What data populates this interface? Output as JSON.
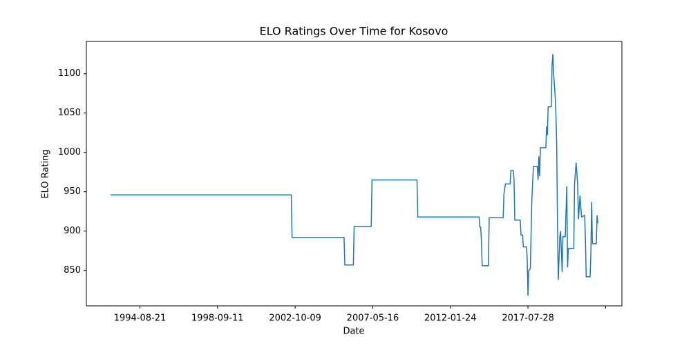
{
  "chart_data": {
    "type": "line",
    "title": "ELO Ratings Over Time for Kosovo",
    "x_label": "Date",
    "y_label": "ELO Rating",
    "x": [
      0,
      233,
      234,
      301,
      302,
      313,
      314,
      336,
      337,
      395,
      396,
      475,
      476,
      477,
      478,
      479,
      487,
      488,
      506,
      507,
      509,
      515,
      516,
      519,
      520,
      521,
      528,
      529,
      531,
      532,
      536,
      537,
      538,
      539,
      541,
      543,
      545,
      550,
      551,
      552,
      553,
      554,
      561,
      562,
      563,
      564,
      568,
      569,
      570,
      571,
      573,
      574,
      575,
      576,
      577,
      579,
      580,
      582,
      583,
      586,
      588,
      589,
      590,
      597,
      598,
      600,
      602,
      603,
      605,
      607,
      611,
      612,
      613,
      618,
      619,
      620,
      621,
      626,
      627,
      628
    ],
    "series": [
      {
        "name": "Kosovo",
        "color": "#1f77b4",
        "values": [
          946,
          946,
          892,
          892,
          857,
          857,
          906,
          906,
          965,
          965,
          918,
          918,
          905,
          905,
          888,
          856,
          856,
          917,
          917,
          947,
          960,
          960,
          977,
          977,
          966,
          914,
          914,
          895,
          895,
          880,
          880,
          865,
          818,
          850,
          852,
          941,
          982,
          982,
          965,
          995,
          970,
          1006,
          1006,
          1033,
          1022,
          1058,
          1058,
          1110,
          1125,
          1100,
          1072,
          1048,
          1010,
          910,
          838,
          893,
          900,
          848,
          893,
          893,
          957,
          854,
          878,
          878,
          960,
          987,
          960,
          915,
          945,
          918,
          920,
          890,
          842,
          842,
          870,
          937,
          884,
          884,
          920,
          910
        ]
      }
    ],
    "xlim": [
      -31,
      659
    ],
    "xticks": [
      {
        "value": 38,
        "label": "1994-08-21"
      },
      {
        "value": 138,
        "label": "1998-09-11"
      },
      {
        "value": 238,
        "label": "2002-10-09"
      },
      {
        "value": 338,
        "label": "2007-05-16"
      },
      {
        "value": 438,
        "label": "2012-01-24"
      },
      {
        "value": 538,
        "label": "2017-07-28"
      },
      {
        "value": 638,
        "label": null
      }
    ],
    "ylim": [
      805,
      1141
    ],
    "yticks": [
      850,
      900,
      950,
      1000,
      1050,
      1100
    ]
  }
}
